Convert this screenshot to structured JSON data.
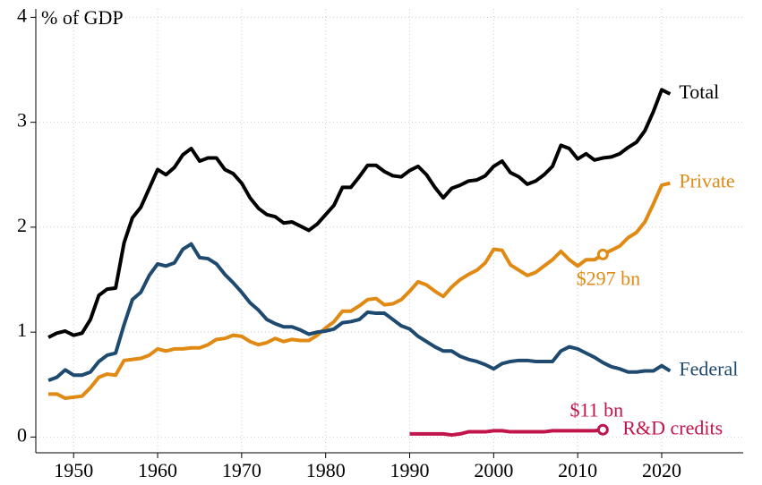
{
  "chart_data": {
    "type": "line",
    "y_label": "% of GDP",
    "x": [
      1947,
      1948,
      1949,
      1950,
      1951,
      1952,
      1953,
      1954,
      1955,
      1956,
      1957,
      1958,
      1959,
      1960,
      1961,
      1962,
      1963,
      1964,
      1965,
      1966,
      1967,
      1968,
      1969,
      1970,
      1971,
      1972,
      1973,
      1974,
      1975,
      1976,
      1977,
      1978,
      1979,
      1980,
      1981,
      1982,
      1983,
      1984,
      1985,
      1986,
      1987,
      1988,
      1989,
      1990,
      1991,
      1992,
      1993,
      1994,
      1995,
      1996,
      1997,
      1998,
      1999,
      2000,
      2001,
      2002,
      2003,
      2004,
      2005,
      2006,
      2007,
      2008,
      2009,
      2010,
      2011,
      2012,
      2013,
      2014,
      2015,
      2016,
      2017,
      2018,
      2019,
      2020,
      2021
    ],
    "series": [
      {
        "name": "Total",
        "color": "#000000",
        "values": [
          0.95,
          0.99,
          1.01,
          0.97,
          0.99,
          1.12,
          1.35,
          1.41,
          1.42,
          1.85,
          2.09,
          2.19,
          2.37,
          2.55,
          2.5,
          2.57,
          2.69,
          2.75,
          2.63,
          2.66,
          2.66,
          2.55,
          2.51,
          2.42,
          2.28,
          2.18,
          2.12,
          2.1,
          2.04,
          2.05,
          2.01,
          1.97,
          2.03,
          2.12,
          2.21,
          2.38,
          2.38,
          2.48,
          2.59,
          2.59,
          2.53,
          2.49,
          2.48,
          2.54,
          2.58,
          2.5,
          2.38,
          2.28,
          2.37,
          2.4,
          2.44,
          2.45,
          2.49,
          2.58,
          2.63,
          2.52,
          2.48,
          2.41,
          2.44,
          2.5,
          2.58,
          2.78,
          2.75,
          2.65,
          2.7,
          2.64,
          2.66,
          2.67,
          2.7,
          2.76,
          2.81,
          2.92,
          3.1,
          3.31,
          3.27
        ]
      },
      {
        "name": "Private",
        "color": "#e08a14",
        "values": [
          0.41,
          0.41,
          0.37,
          0.38,
          0.39,
          0.47,
          0.57,
          0.6,
          0.59,
          0.73,
          0.74,
          0.75,
          0.78,
          0.84,
          0.82,
          0.84,
          0.84,
          0.85,
          0.85,
          0.88,
          0.93,
          0.94,
          0.97,
          0.96,
          0.91,
          0.88,
          0.9,
          0.94,
          0.91,
          0.93,
          0.92,
          0.92,
          0.97,
          1.04,
          1.1,
          1.2,
          1.2,
          1.25,
          1.31,
          1.32,
          1.26,
          1.27,
          1.31,
          1.39,
          1.48,
          1.45,
          1.39,
          1.34,
          1.43,
          1.5,
          1.55,
          1.59,
          1.66,
          1.79,
          1.78,
          1.64,
          1.59,
          1.54,
          1.57,
          1.63,
          1.69,
          1.77,
          1.69,
          1.63,
          1.69,
          1.69,
          1.74,
          1.78,
          1.82,
          1.9,
          1.95,
          2.05,
          2.22,
          2.4,
          2.42
        ]
      },
      {
        "name": "Federal",
        "color": "#1f4a70",
        "values": [
          0.54,
          0.57,
          0.64,
          0.59,
          0.59,
          0.62,
          0.72,
          0.78,
          0.8,
          1.07,
          1.31,
          1.38,
          1.54,
          1.65,
          1.63,
          1.66,
          1.79,
          1.84,
          1.71,
          1.7,
          1.65,
          1.55,
          1.47,
          1.38,
          1.28,
          1.21,
          1.12,
          1.08,
          1.05,
          1.05,
          1.02,
          0.98,
          1.0,
          1.01,
          1.03,
          1.09,
          1.1,
          1.12,
          1.19,
          1.18,
          1.18,
          1.12,
          1.06,
          1.03,
          0.96,
          0.91,
          0.86,
          0.82,
          0.82,
          0.77,
          0.74,
          0.72,
          0.69,
          0.65,
          0.7,
          0.72,
          0.73,
          0.73,
          0.72,
          0.72,
          0.72,
          0.82,
          0.86,
          0.84,
          0.8,
          0.76,
          0.71,
          0.67,
          0.65,
          0.62,
          0.62,
          0.63,
          0.63,
          0.68,
          0.63
        ]
      },
      {
        "name": "R&D credits",
        "color": "#c0144a",
        "values": [
          null,
          null,
          null,
          null,
          null,
          null,
          null,
          null,
          null,
          null,
          null,
          null,
          null,
          null,
          null,
          null,
          null,
          null,
          null,
          null,
          null,
          null,
          null,
          null,
          null,
          null,
          null,
          null,
          null,
          null,
          null,
          null,
          null,
          null,
          null,
          null,
          null,
          null,
          null,
          null,
          null,
          null,
          null,
          0.03,
          0.03,
          0.03,
          0.03,
          0.03,
          0.02,
          0.03,
          0.05,
          0.05,
          0.05,
          0.06,
          0.06,
          0.05,
          0.05,
          0.05,
          0.05,
          0.05,
          0.06,
          0.06,
          0.06,
          0.06,
          0.06,
          0.06,
          0.07,
          null,
          null,
          null,
          null,
          null,
          null,
          null,
          null
        ]
      }
    ],
    "annotations": [
      {
        "text": "$297 bn",
        "series": "Private",
        "x": 2013
      },
      {
        "text": "$11 bn",
        "series": "R&D credits",
        "x": 2013
      }
    ],
    "xlim": [
      1945.5,
      2029.7
    ],
    "xticks": [
      1950,
      1960,
      1970,
      1980,
      1990,
      2000,
      2010,
      2020
    ],
    "ylim": [
      -0.15,
      4.08
    ],
    "yticks": [
      0,
      1,
      2,
      3,
      4
    ],
    "grid": true
  }
}
